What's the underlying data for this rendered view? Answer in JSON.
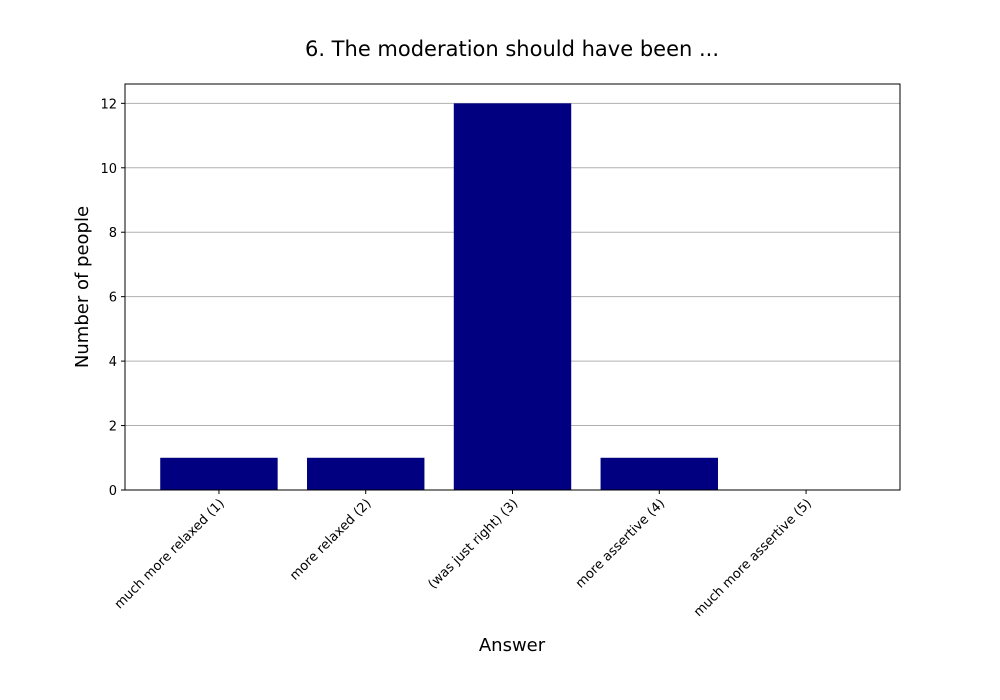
{
  "chart_data": {
    "type": "bar",
    "title": "6. The moderation should have been ...",
    "x_label": "Answer",
    "y_label": "Number of people",
    "categories": [
      "much more relaxed (1)",
      "more relaxed (2)",
      "(was just right) (3)",
      "more assertive (4)",
      "much more assertive (5)"
    ],
    "values": [
      1,
      1,
      12,
      1,
      0
    ],
    "color": "#000080",
    "ylim": [
      0,
      12.6
    ],
    "yticks": [
      0,
      2,
      4,
      6,
      8,
      10,
      12
    ],
    "grid": true
  }
}
